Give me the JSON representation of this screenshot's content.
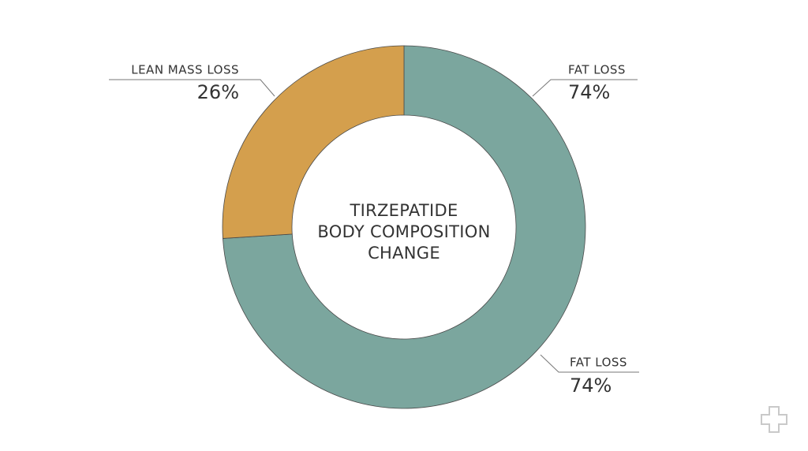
{
  "chart_data": {
    "type": "donut",
    "title": [
      "TIRZEPATIDE",
      "BODY COMPOSITION",
      "CHANGE"
    ],
    "categories": [
      "FAT LOSS",
      "LEAN MASS LOSS"
    ],
    "values": [
      74,
      26
    ],
    "value_labels": [
      "74%",
      "26%"
    ],
    "colors": [
      "#7ba69e",
      "#d49f4d"
    ]
  }
}
